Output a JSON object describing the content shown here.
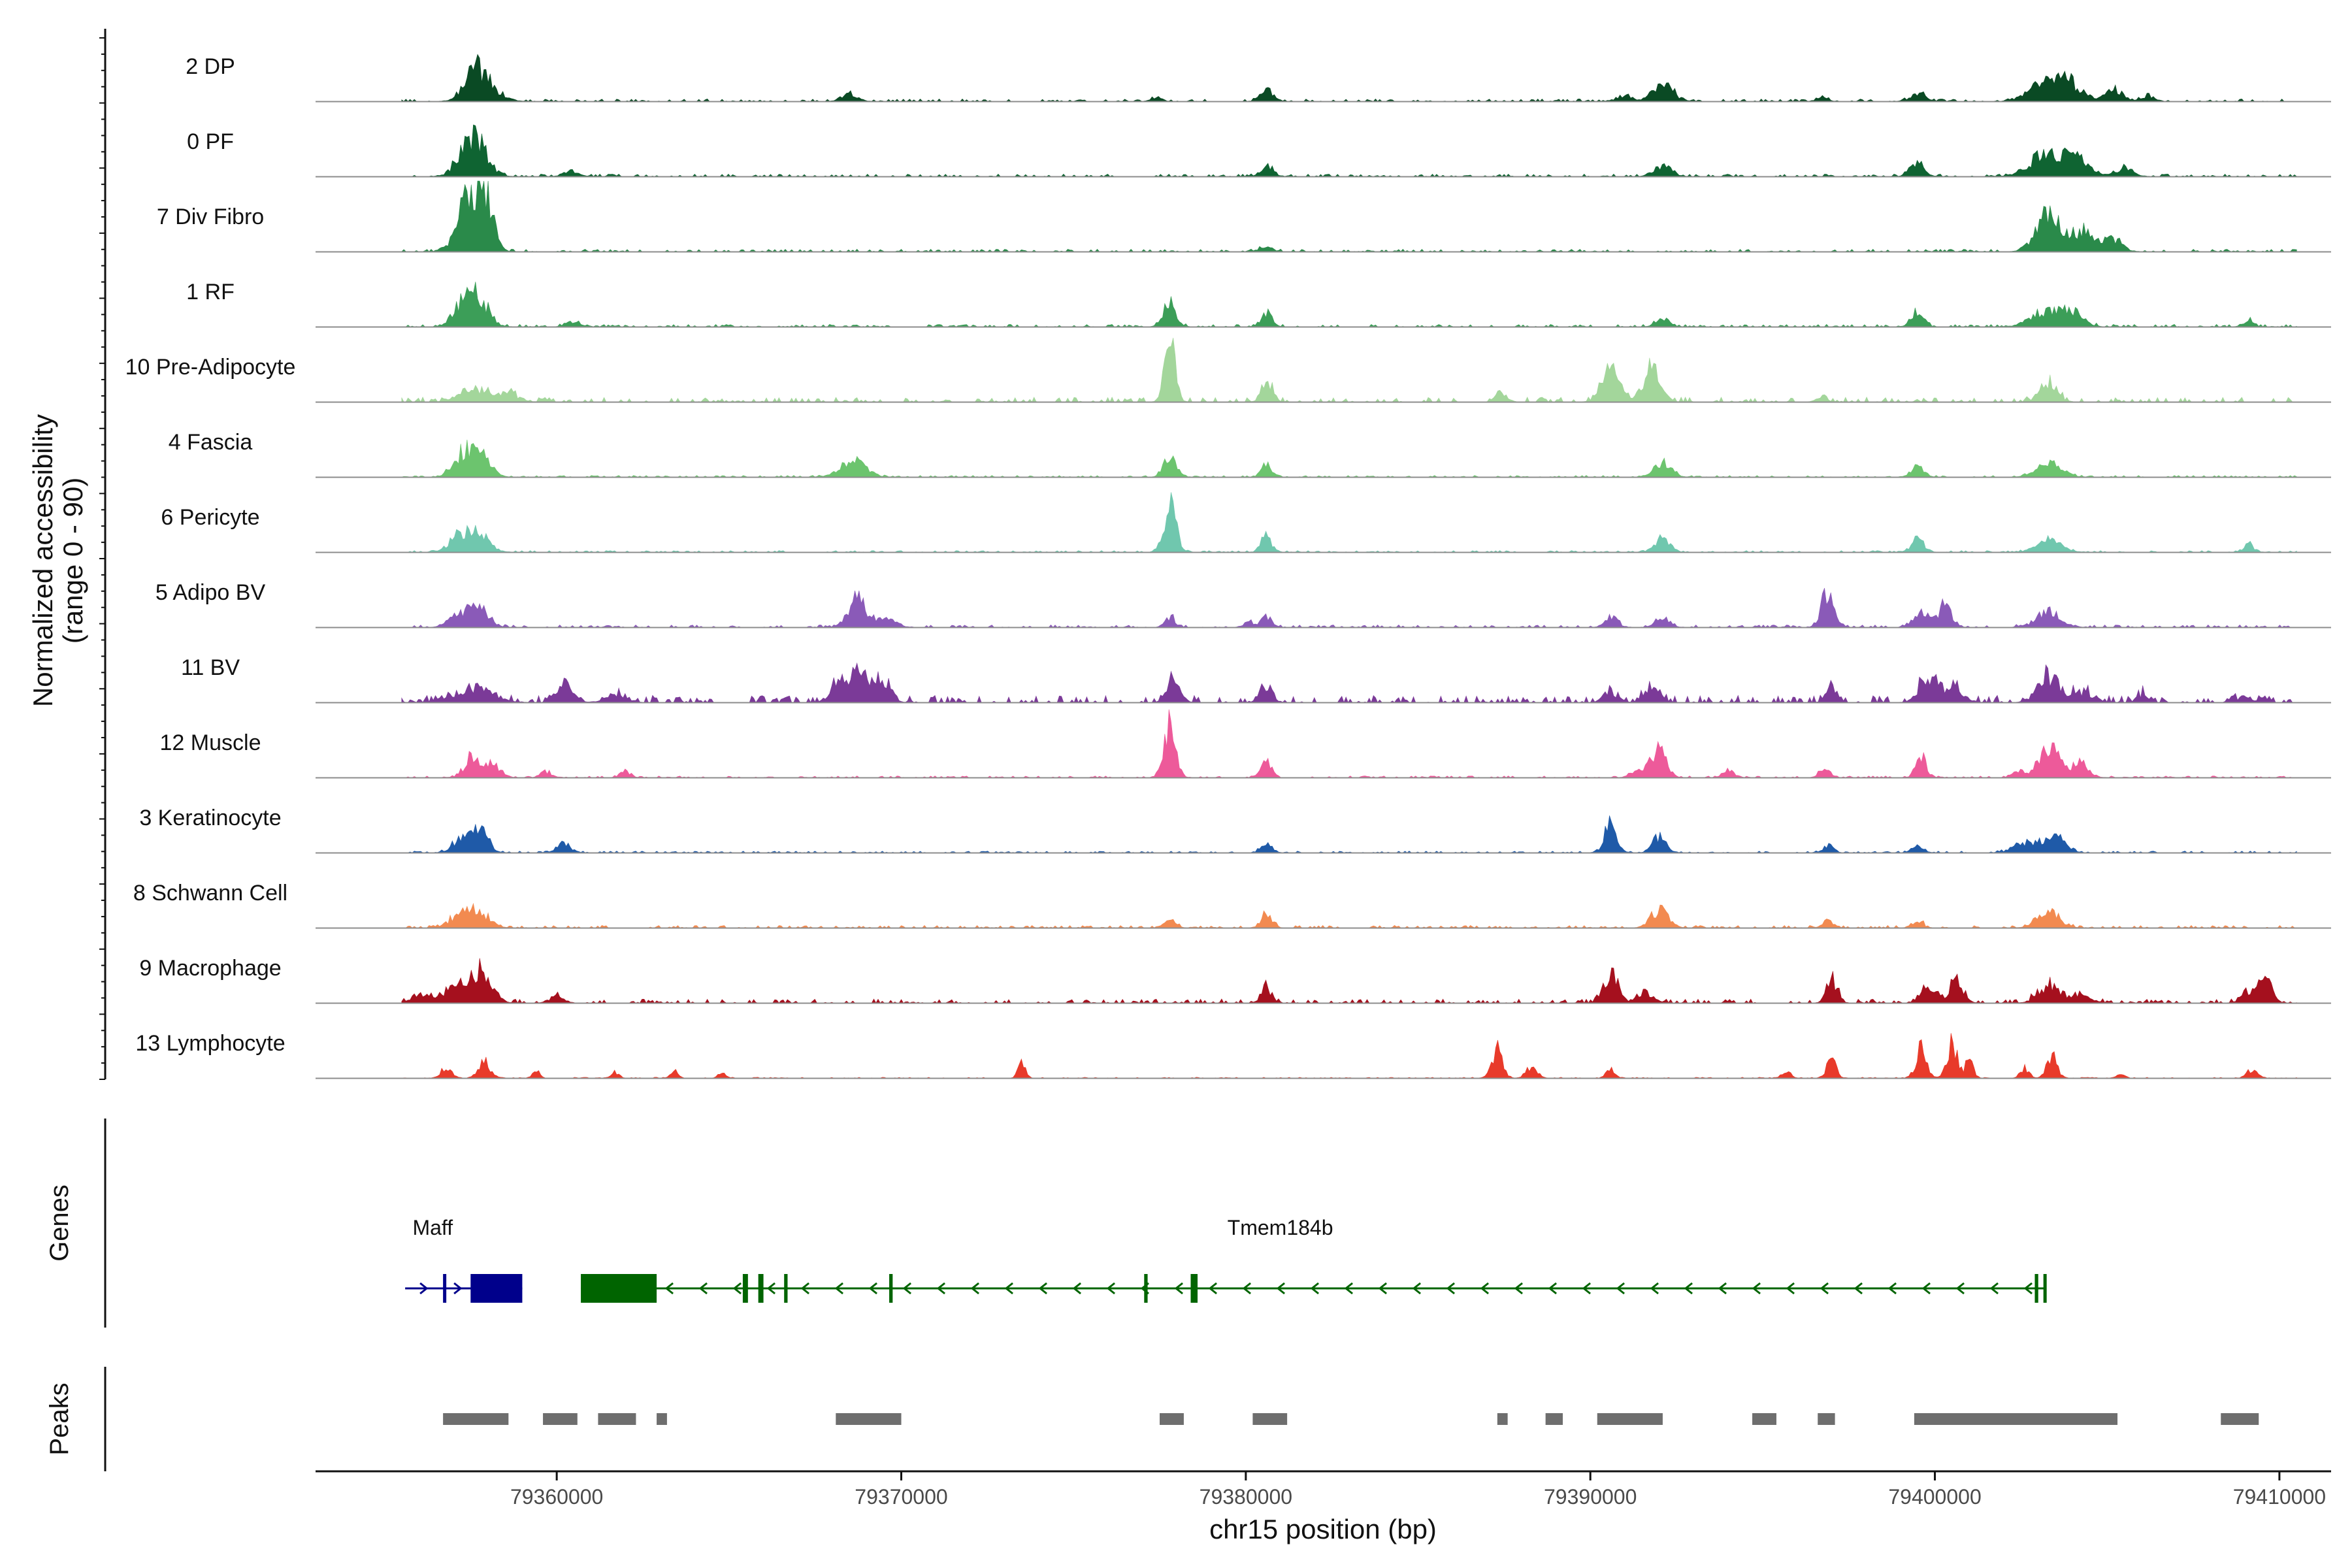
{
  "chart_data": {
    "type": "area",
    "y_axis_label_line1": "Normalized accessibility",
    "y_axis_label_line2": "(range 0 - 90)",
    "y_range": [
      0,
      90
    ],
    "x_axis_label": "chr15 position (bp)",
    "xlim": [
      79353000,
      79411500
    ],
    "x_ticks": [
      79360000,
      79370000,
      79380000,
      79390000,
      79400000,
      79410000
    ],
    "x_tick_labels": [
      "79360000",
      "79370000",
      "79380000",
      "79390000",
      "79400000",
      "79410000"
    ],
    "tracks": [
      {
        "name": "2 DP",
        "color": "#0a4a24",
        "noise": 3,
        "peaks": [
          [
            79357600,
            30,
            300
          ],
          [
            79357900,
            20,
            400
          ],
          [
            79368500,
            12,
            220
          ],
          [
            79377400,
            6,
            150
          ],
          [
            79380600,
            18,
            180
          ],
          [
            79391000,
            8,
            220
          ],
          [
            79392100,
            22,
            300
          ],
          [
            79396700,
            6,
            150
          ],
          [
            79399500,
            10,
            220
          ],
          [
            79403200,
            24,
            450
          ],
          [
            79403900,
            22,
            350
          ],
          [
            79405200,
            14,
            280
          ],
          [
            79406200,
            8,
            180
          ]
        ]
      },
      {
        "name": "0 PF",
        "color": "#0f6432",
        "noise": 3,
        "peaks": [
          [
            79357700,
            42,
            320
          ],
          [
            79357300,
            20,
            300
          ],
          [
            79360400,
            8,
            200
          ],
          [
            79380600,
            16,
            180
          ],
          [
            79392100,
            14,
            250
          ],
          [
            79399500,
            20,
            200
          ],
          [
            79403200,
            30,
            450
          ],
          [
            79404100,
            24,
            350
          ],
          [
            79405500,
            12,
            250
          ]
        ]
      },
      {
        "name": "7 Div Fibro",
        "color": "#2a8a4a",
        "noise": 3,
        "peaks": [
          [
            79357700,
            70,
            280
          ],
          [
            79357300,
            40,
            280
          ],
          [
            79358000,
            40,
            200
          ],
          [
            79380600,
            6,
            180
          ],
          [
            79403300,
            52,
            350
          ],
          [
            79404300,
            26,
            350
          ],
          [
            79405200,
            16,
            250
          ]
        ]
      },
      {
        "name": "1 RF",
        "color": "#3c9e58",
        "noise": 3,
        "peaks": [
          [
            79357700,
            40,
            300
          ],
          [
            79357200,
            24,
            250
          ],
          [
            79360500,
            8,
            200
          ],
          [
            79377800,
            34,
            180
          ],
          [
            79380600,
            20,
            150
          ],
          [
            79392100,
            10,
            200
          ],
          [
            79399500,
            18,
            180
          ],
          [
            79403200,
            22,
            400
          ],
          [
            79404000,
            18,
            300
          ],
          [
            79409100,
            8,
            150
          ]
        ]
      },
      {
        "name": "10 Pre-Adipocyte",
        "color": "#a3d69b",
        "noise": 6,
        "peaks": [
          [
            79357600,
            18,
            400
          ],
          [
            79358600,
            10,
            300
          ],
          [
            79377800,
            85,
            150
          ],
          [
            79380600,
            28,
            150
          ],
          [
            79390600,
            42,
            250
          ],
          [
            79391800,
            48,
            250
          ],
          [
            79387400,
            14,
            150
          ],
          [
            79403300,
            24,
            250
          ],
          [
            79396700,
            8,
            150
          ]
        ]
      },
      {
        "name": "4 Fascia",
        "color": "#6cc46e",
        "noise": 2,
        "peaks": [
          [
            79357700,
            36,
            300
          ],
          [
            79357200,
            24,
            250
          ],
          [
            79368600,
            22,
            350
          ],
          [
            79377800,
            30,
            170
          ],
          [
            79380600,
            16,
            150
          ],
          [
            79392100,
            18,
            250
          ],
          [
            79399500,
            14,
            180
          ],
          [
            79403300,
            20,
            350
          ]
        ]
      },
      {
        "name": "6 Pericyte",
        "color": "#70c7ae",
        "noise": 2,
        "peaks": [
          [
            79357700,
            30,
            300
          ],
          [
            79357100,
            20,
            250
          ],
          [
            79377800,
            60,
            180
          ],
          [
            79380600,
            22,
            150
          ],
          [
            79392100,
            22,
            200
          ],
          [
            79399500,
            18,
            180
          ],
          [
            79403300,
            16,
            350
          ],
          [
            79409100,
            10,
            150
          ]
        ]
      },
      {
        "name": "5 Adipo BV",
        "color": "#8a5ab8",
        "noise": 3,
        "peaks": [
          [
            79357700,
            26,
            300
          ],
          [
            79357100,
            16,
            250
          ],
          [
            79368700,
            38,
            250
          ],
          [
            79369500,
            12,
            300
          ],
          [
            79377800,
            14,
            150
          ],
          [
            79380600,
            16,
            150
          ],
          [
            79380100,
            8,
            150
          ],
          [
            79390600,
            14,
            180
          ],
          [
            79392100,
            12,
            200
          ],
          [
            79396900,
            52,
            180
          ],
          [
            79399600,
            20,
            200
          ],
          [
            79400300,
            30,
            200
          ],
          [
            79403300,
            20,
            350
          ]
        ]
      },
      {
        "name": "11 BV",
        "color": "#7b3a98",
        "noise": 9,
        "peaks": [
          [
            79357600,
            20,
            500
          ],
          [
            79360300,
            28,
            200
          ],
          [
            79361700,
            10,
            300
          ],
          [
            79368300,
            26,
            300
          ],
          [
            79368900,
            40,
            250
          ],
          [
            79369500,
            30,
            200
          ],
          [
            79377900,
            34,
            180
          ],
          [
            79380600,
            22,
            170
          ],
          [
            79390600,
            14,
            200
          ],
          [
            79391800,
            22,
            200
          ],
          [
            79397000,
            22,
            150
          ],
          [
            79399800,
            30,
            250
          ],
          [
            79400500,
            20,
            300
          ],
          [
            79403300,
            36,
            300
          ],
          [
            79404300,
            14,
            300
          ],
          [
            79406000,
            10,
            150
          ],
          [
            79409000,
            8,
            200
          ]
        ]
      },
      {
        "name": "12 Muscle",
        "color": "#ed5a9a",
        "noise": 2,
        "peaks": [
          [
            79357600,
            30,
            250
          ],
          [
            79358200,
            16,
            200
          ],
          [
            79359700,
            8,
            150
          ],
          [
            79362000,
            8,
            150
          ],
          [
            79377800,
            70,
            170
          ],
          [
            79380600,
            22,
            150
          ],
          [
            79392000,
            44,
            200
          ],
          [
            79391400,
            14,
            200
          ],
          [
            79394000,
            10,
            150
          ],
          [
            79396800,
            12,
            150
          ],
          [
            79399600,
            28,
            150
          ],
          [
            79402400,
            10,
            150
          ],
          [
            79403300,
            40,
            300
          ],
          [
            79404200,
            20,
            250
          ]
        ]
      },
      {
        "name": "3 Keratinocyte",
        "color": "#1f5aa8",
        "noise": 2,
        "peaks": [
          [
            79357700,
            40,
            250
          ],
          [
            79357100,
            14,
            200
          ],
          [
            79360200,
            12,
            200
          ],
          [
            79380600,
            12,
            150
          ],
          [
            79390600,
            42,
            180
          ],
          [
            79392000,
            22,
            180
          ],
          [
            79396900,
            10,
            150
          ],
          [
            79399500,
            10,
            150
          ],
          [
            79402800,
            16,
            400
          ],
          [
            79403600,
            20,
            250
          ]
        ]
      },
      {
        "name": "8 Schwann Cell",
        "color": "#f28a50",
        "noise": 3,
        "peaks": [
          [
            79357700,
            24,
            300
          ],
          [
            79357100,
            14,
            250
          ],
          [
            79377800,
            12,
            150
          ],
          [
            79380600,
            22,
            150
          ],
          [
            79392000,
            24,
            250
          ],
          [
            79396900,
            10,
            150
          ],
          [
            79399500,
            10,
            150
          ],
          [
            79403300,
            24,
            300
          ]
        ]
      },
      {
        "name": "9 Macrophage",
        "color": "#a5101e",
        "noise": 5,
        "peaks": [
          [
            79357800,
            44,
            300
          ],
          [
            79357000,
            26,
            250
          ],
          [
            79356100,
            10,
            300
          ],
          [
            79360000,
            10,
            200
          ],
          [
            79380600,
            22,
            150
          ],
          [
            79390600,
            38,
            200
          ],
          [
            79391600,
            14,
            250
          ],
          [
            79397000,
            34,
            150
          ],
          [
            79399800,
            22,
            200
          ],
          [
            79400600,
            30,
            200
          ],
          [
            79403300,
            24,
            300
          ],
          [
            79404200,
            12,
            300
          ],
          [
            79409100,
            16,
            200
          ],
          [
            79409600,
            28,
            180
          ]
        ]
      },
      {
        "name": "13 Lymphocyte",
        "color": "#e83a2a",
        "noise": 1,
        "peaks": [
          [
            79356800,
            14,
            150
          ],
          [
            79357900,
            22,
            170
          ],
          [
            79359400,
            10,
            100
          ],
          [
            79361700,
            8,
            100
          ],
          [
            79363400,
            10,
            100
          ],
          [
            79364800,
            8,
            100
          ],
          [
            79373500,
            24,
            100
          ],
          [
            79387300,
            38,
            150
          ],
          [
            79388300,
            16,
            150
          ],
          [
            79390600,
            12,
            120
          ],
          [
            79395700,
            10,
            120
          ],
          [
            79397000,
            30,
            120
          ],
          [
            79399600,
            40,
            150
          ],
          [
            79400500,
            50,
            150
          ],
          [
            79401000,
            22,
            120
          ],
          [
            79402600,
            14,
            120
          ],
          [
            79403400,
            28,
            150
          ],
          [
            79405400,
            8,
            100
          ],
          [
            79409200,
            10,
            150
          ]
        ]
      }
    ],
    "genes_panel_label": "Genes",
    "genes": [
      {
        "name": "Maff",
        "color": "#00008b",
        "strand": "+",
        "start": 79355600,
        "end": 79359000,
        "exons": [
          [
            79356700,
            79356750
          ],
          [
            79357500,
            79359000
          ]
        ]
      },
      {
        "name": "Tmem184b",
        "color": "#006400",
        "strand": "-",
        "start": 79360700,
        "end": 79403200,
        "exons": [
          [
            79360700,
            79362900
          ],
          [
            79365400,
            79365550
          ],
          [
            79365850,
            79366000
          ],
          [
            79366600,
            79366700
          ],
          [
            79369650,
            79369750
          ],
          [
            79377050,
            79377150
          ],
          [
            79378400,
            79378600
          ],
          [
            79402900,
            79403000
          ],
          [
            79403150,
            79403200
          ]
        ]
      }
    ],
    "peaks_panel_label": "Peaks",
    "peak_regions": [
      [
        79356700,
        79358600
      ],
      [
        79359600,
        79360600
      ],
      [
        79361200,
        79362300
      ],
      [
        79362900,
        79363200
      ],
      [
        79368100,
        79370000
      ],
      [
        79377500,
        79378200
      ],
      [
        79380200,
        79381200
      ],
      [
        79387300,
        79387600
      ],
      [
        79388700,
        79389200
      ],
      [
        79390200,
        79392100
      ],
      [
        79394700,
        79395400
      ],
      [
        79396600,
        79397100
      ],
      [
        79399400,
        79405300
      ],
      [
        79408300,
        79409400
      ]
    ]
  }
}
